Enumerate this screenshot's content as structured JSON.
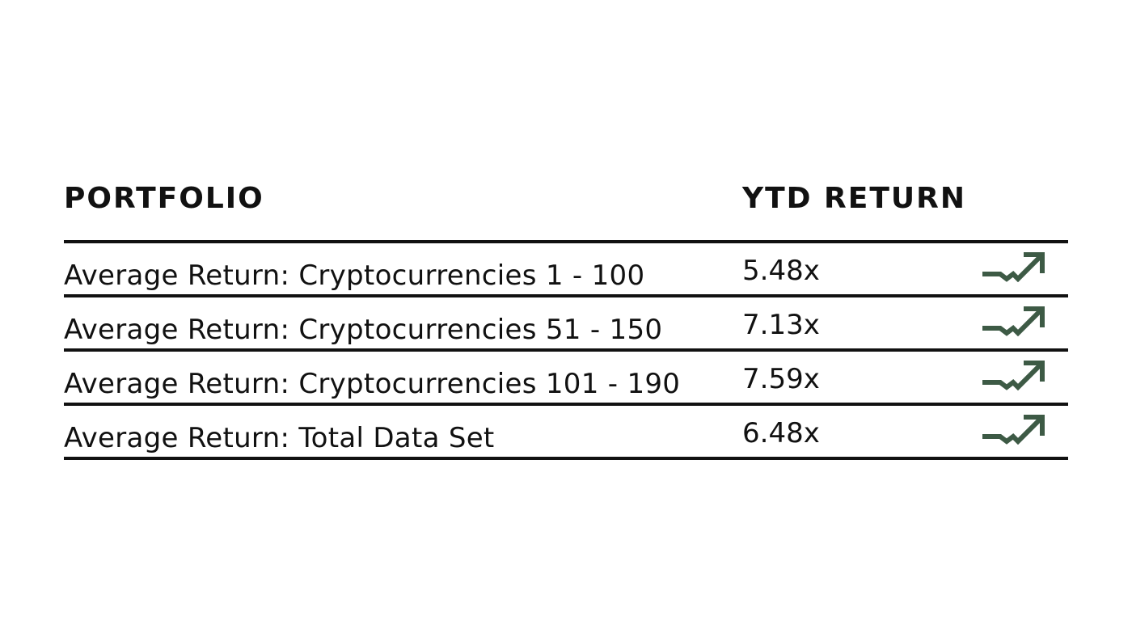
{
  "table": {
    "headers": {
      "portfolio": "PORTFOLIO",
      "ytd_return": "YTD RETURN"
    },
    "rows": [
      {
        "label": "Average Return: Cryptocurrencies 1 - 100",
        "value": "5.48x",
        "icon": "trend-up-icon"
      },
      {
        "label": "Average Return: Cryptocurrencies 51 - 150",
        "value": "7.13x",
        "icon": "trend-up-icon"
      },
      {
        "label": "Average Return: Cryptocurrencies 101 - 190",
        "value": "7.59x",
        "icon": "trend-up-icon"
      },
      {
        "label": "Average Return: Total Data Set",
        "value": "6.48x",
        "icon": "trend-up-icon"
      }
    ],
    "icon_color": "#3d5a45",
    "rule_color": "#111111"
  }
}
